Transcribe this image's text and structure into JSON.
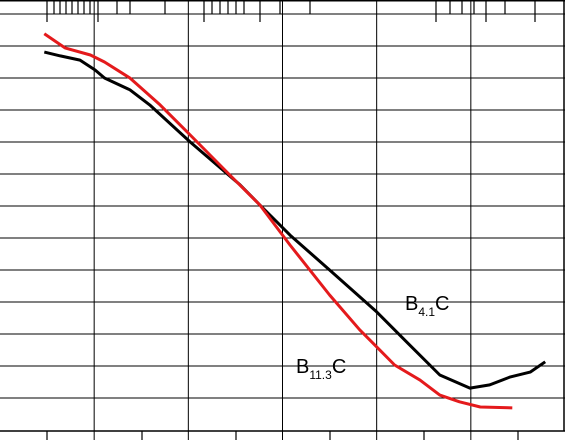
{
  "chart_data": {
    "type": "line",
    "xlim": [
      0,
      6
    ],
    "ylim": [
      0,
      13.4375
    ],
    "xticks": [
      1,
      2,
      3,
      4,
      5
    ],
    "yticks": [
      1,
      2,
      3,
      4,
      5,
      6,
      7,
      8,
      9,
      10,
      11,
      12,
      13
    ],
    "grid": true,
    "series": [
      {
        "name": {
          "base": "B",
          "sub": "4.1",
          "tail": "C"
        },
        "color": "#000000",
        "x": [
          0.47,
          0.64,
          0.85,
          1.01,
          1.11,
          1.38,
          1.59,
          2.02,
          2.55,
          2.76,
          3.08,
          3.5,
          4.0,
          4.35,
          4.67,
          4.99,
          5.2,
          5.42,
          5.63,
          5.79
        ],
        "values": [
          11.81,
          11.69,
          11.56,
          11.25,
          11.0,
          10.63,
          10.16,
          9.0,
          7.66,
          7.03,
          6.09,
          5.0,
          3.69,
          2.66,
          1.72,
          1.31,
          1.41,
          1.66,
          1.81,
          2.13
        ]
      },
      {
        "name": {
          "base": "B",
          "sub": "11.3",
          "tail": "C"
        },
        "color": "#e41a1c",
        "x": [
          0.47,
          0.69,
          0.96,
          1.11,
          1.38,
          1.7,
          2.02,
          2.44,
          2.76,
          3.08,
          3.5,
          3.82,
          4.19,
          4.46,
          4.67,
          4.88,
          5.1,
          5.44
        ],
        "values": [
          12.38,
          11.94,
          11.72,
          11.5,
          11.0,
          10.16,
          9.22,
          7.97,
          7.03,
          5.78,
          4.22,
          3.13,
          2.03,
          1.56,
          1.09,
          0.88,
          0.72,
          0.69
        ]
      }
    ]
  }
}
